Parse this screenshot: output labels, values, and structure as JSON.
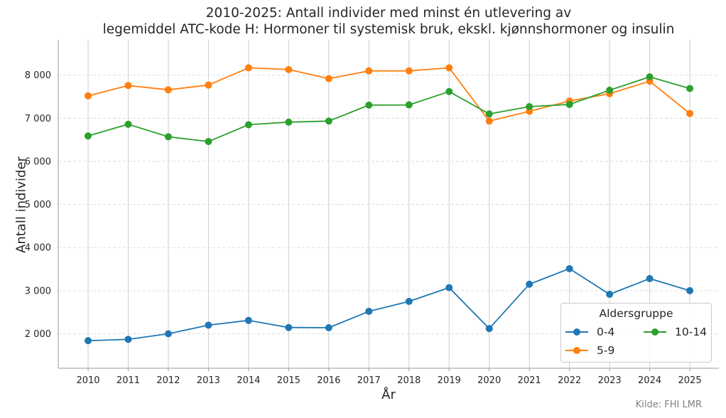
{
  "chart_data": {
    "type": "line",
    "title_lines": [
      "2010-2025: Antall individer med minst én utlevering av",
      "legemiddel ATC-kode H: Hormoner til systemisk bruk, ekskl. kjønnshormoner og insulin"
    ],
    "xlabel": "År",
    "ylabel": "Antall individer",
    "x": [
      2010,
      2011,
      2012,
      2013,
      2014,
      2015,
      2016,
      2017,
      2018,
      2019,
      2020,
      2021,
      2022,
      2023,
      2024,
      2025
    ],
    "x_tick_labels": [
      "2010",
      "2011",
      "2012",
      "2013",
      "2014",
      "2015",
      "2016",
      "2017",
      "2018",
      "2019",
      "2020",
      "2021",
      "2022",
      "2023",
      "2024",
      "2025"
    ],
    "ylim": [
      1200,
      8820
    ],
    "y_ticks": [
      2000,
      3000,
      4000,
      5000,
      6000,
      7000,
      8000
    ],
    "y_tick_labels": [
      "2 000",
      "3 000",
      "4 000",
      "5 000",
      "6 000",
      "7 000",
      "8 000"
    ],
    "grid": {
      "x": "solid vertical",
      "y": "dashed horizontal"
    },
    "series": [
      {
        "name": "0-4",
        "color": "#1f77b4",
        "values": [
          1840,
          1870,
          2000,
          2200,
          2310,
          2145,
          2140,
          2520,
          2750,
          3070,
          2120,
          3150,
          3510,
          2915,
          3280,
          3000
        ]
      },
      {
        "name": "5-9",
        "color": "#ff7f0e",
        "values": [
          7520,
          7760,
          7660,
          7770,
          8170,
          8130,
          7920,
          8100,
          8100,
          8170,
          6935,
          7160,
          7400,
          7570,
          7860,
          7110
        ]
      },
      {
        "name": "10-14",
        "color": "#2ca02c",
        "values": [
          6590,
          6860,
          6570,
          6460,
          6850,
          6910,
          6935,
          7305,
          7310,
          7620,
          7100,
          7270,
          7320,
          7650,
          7960,
          7690
        ]
      }
    ],
    "legend": {
      "title": "Aldersgruppe",
      "placement": "lower-right"
    },
    "source": "Kilde: FHI LMR"
  }
}
